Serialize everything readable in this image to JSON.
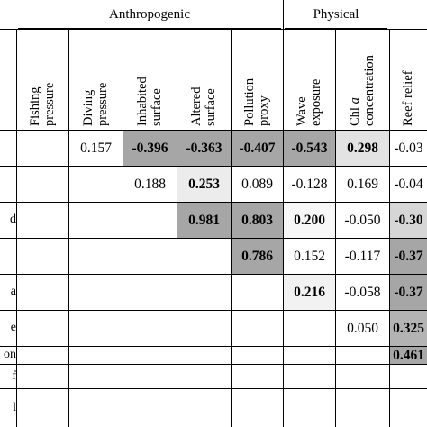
{
  "groups": [
    {
      "label": "Anthropogenic"
    },
    {
      "label": "Physical"
    }
  ],
  "columns": [
    {
      "line1": "Fishing",
      "line2": "pressure"
    },
    {
      "line1": "Diving",
      "line2": "pressure"
    },
    {
      "line1": "Inhabited",
      "line2": "surface"
    },
    {
      "line1": "Altered",
      "line2": "surface"
    },
    {
      "line1": "Pollution",
      "line2": "proxy"
    },
    {
      "line1": "Wave",
      "line2": "exposure"
    },
    {
      "line1": "Chl a",
      "line2": "concentration"
    },
    {
      "line1": "Reef relief",
      "line2": ""
    }
  ],
  "row_labels": [
    "",
    "",
    "d",
    "",
    "a",
    "e",
    "on",
    "f",
    "l"
  ],
  "cells": [
    {
      "row": 0,
      "col": 1,
      "text": "0.157",
      "bold": false,
      "shade": "#ffffff"
    },
    {
      "row": 0,
      "col": 2,
      "text": "-0.396",
      "bold": true,
      "shade": "#a6a6a6"
    },
    {
      "row": 0,
      "col": 3,
      "text": "-0.363",
      "bold": true,
      "shade": "#a6a6a6"
    },
    {
      "row": 0,
      "col": 4,
      "text": "-0.407",
      "bold": true,
      "shade": "#a6a6a6"
    },
    {
      "row": 0,
      "col": 5,
      "text": "-0.543",
      "bold": true,
      "shade": "#a6a6a6"
    },
    {
      "row": 0,
      "col": 6,
      "text": "0.298",
      "bold": true,
      "shade": "#e3e3e3"
    },
    {
      "row": 0,
      "col": 7,
      "text": "-0.03",
      "bold": false,
      "shade": "#ffffff"
    },
    {
      "row": 1,
      "col": 2,
      "text": "0.188",
      "bold": false,
      "shade": "#ffffff"
    },
    {
      "row": 1,
      "col": 3,
      "text": "0.253",
      "bold": true,
      "shade": "#ececec"
    },
    {
      "row": 1,
      "col": 4,
      "text": "0.089",
      "bold": false,
      "shade": "#ffffff"
    },
    {
      "row": 1,
      "col": 5,
      "text": "-0.128",
      "bold": false,
      "shade": "#ffffff"
    },
    {
      "row": 1,
      "col": 6,
      "text": "0.169",
      "bold": false,
      "shade": "#ffffff"
    },
    {
      "row": 1,
      "col": 7,
      "text": "-0.04",
      "bold": false,
      "shade": "#ffffff"
    },
    {
      "row": 2,
      "col": 3,
      "text": "0.981",
      "bold": true,
      "shade": "#a6a6a6"
    },
    {
      "row": 2,
      "col": 4,
      "text": "0.803",
      "bold": true,
      "shade": "#a6a6a6"
    },
    {
      "row": 2,
      "col": 5,
      "text": "0.200",
      "bold": true,
      "shade": "#f7f7f7"
    },
    {
      "row": 2,
      "col": 6,
      "text": "-0.050",
      "bold": false,
      "shade": "#ffffff"
    },
    {
      "row": 2,
      "col": 7,
      "text": "-0.30",
      "bold": true,
      "shade": "#d6d6d6"
    },
    {
      "row": 3,
      "col": 4,
      "text": "0.786",
      "bold": true,
      "shade": "#a6a6a6"
    },
    {
      "row": 3,
      "col": 5,
      "text": "0.152",
      "bold": false,
      "shade": "#ffffff"
    },
    {
      "row": 3,
      "col": 6,
      "text": "-0.117",
      "bold": false,
      "shade": "#ffffff"
    },
    {
      "row": 3,
      "col": 7,
      "text": "-0.37",
      "bold": true,
      "shade": "#a6a6a6"
    },
    {
      "row": 4,
      "col": 5,
      "text": "0.216",
      "bold": true,
      "shade": "#f2f2f2"
    },
    {
      "row": 4,
      "col": 6,
      "text": "-0.058",
      "bold": false,
      "shade": "#ffffff"
    },
    {
      "row": 4,
      "col": 7,
      "text": "-0.37",
      "bold": true,
      "shade": "#a6a6a6"
    },
    {
      "row": 5,
      "col": 6,
      "text": "0.050",
      "bold": false,
      "shade": "#ffffff"
    },
    {
      "row": 5,
      "col": 7,
      "text": "0.325",
      "bold": true,
      "shade": "#b3b3b3"
    },
    {
      "row": 6,
      "col": 7,
      "text": "0.461",
      "bold": true,
      "shade": "#a6a6a6"
    }
  ]
}
